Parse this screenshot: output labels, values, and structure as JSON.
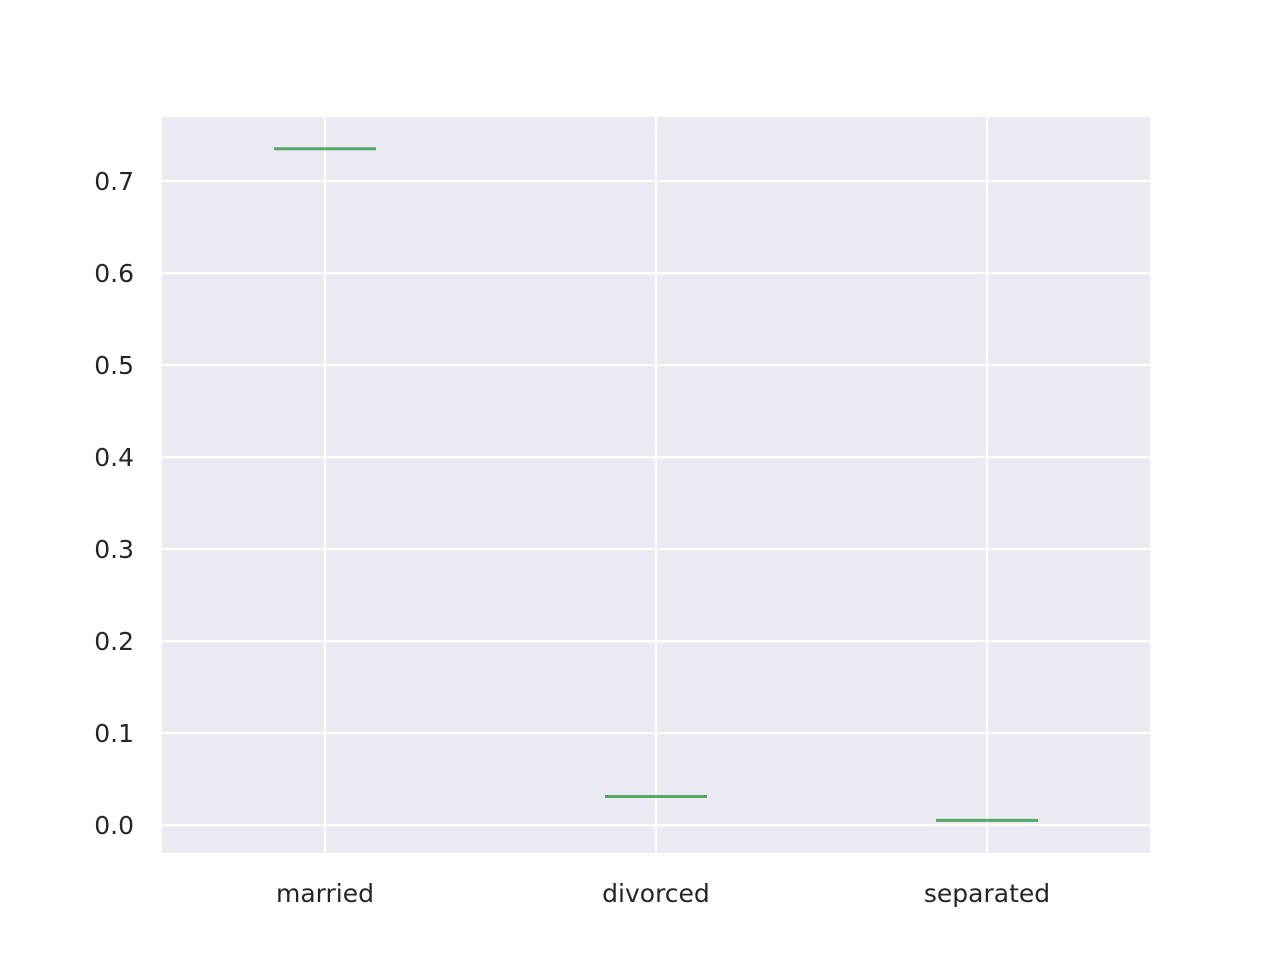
{
  "chart_data": {
    "type": "box",
    "title": "",
    "xlabel": "",
    "ylabel": "",
    "categories": [
      "married",
      "divorced",
      "separated"
    ],
    "values": [
      0.735,
      0.031,
      0.005
    ],
    "ylim": [
      -0.03,
      0.77
    ],
    "yticks": [
      "0.0",
      "0.1",
      "0.2",
      "0.3",
      "0.4",
      "0.5",
      "0.6",
      "0.7"
    ],
    "grid": true,
    "legend": "none",
    "colors": {
      "plot_background": "#eaeaf2",
      "grid": "#ffffff",
      "median_line": "#55a868",
      "text": "#262626"
    }
  }
}
